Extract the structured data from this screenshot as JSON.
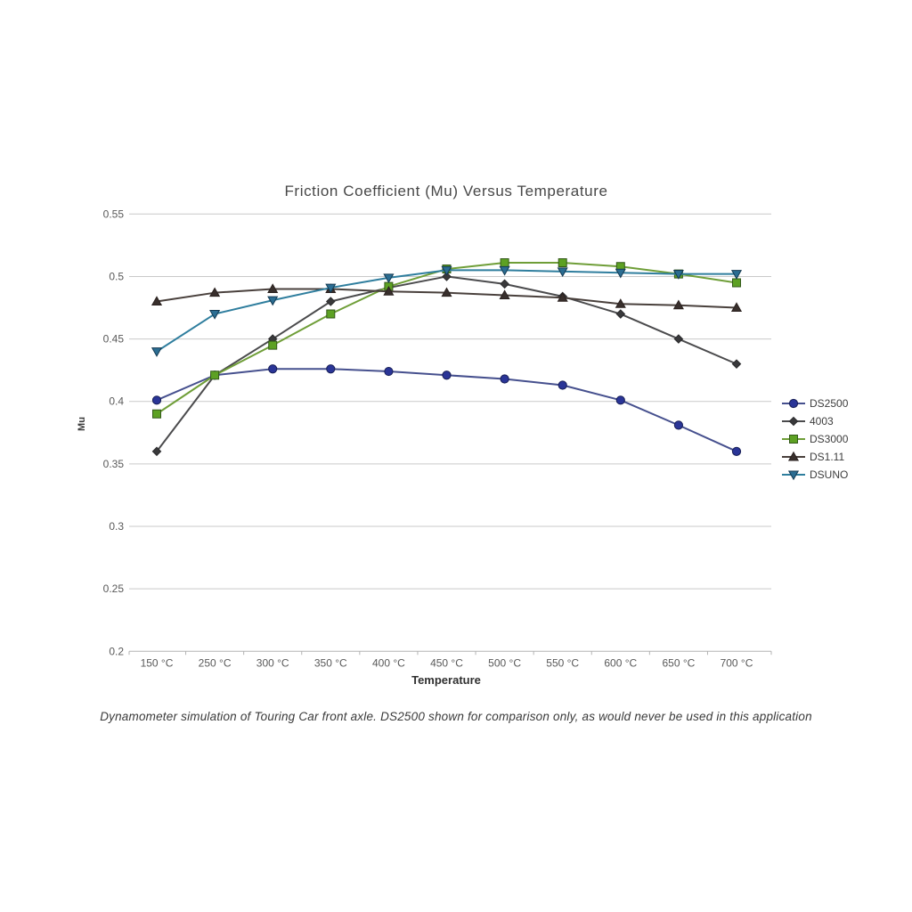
{
  "chart_data": {
    "type": "line",
    "title": "Friction Coefficient (Mu) Versus Temperature",
    "xlabel": "Temperature",
    "ylabel": "Mu",
    "categories": [
      "150 °C",
      "250 °C",
      "300 °C",
      "350 °C",
      "400 °C",
      "450 °C",
      "500 °C",
      "550 °C",
      "600 °C",
      "650 °C",
      "700 °C"
    ],
    "y_ticks": [
      "0.55",
      "0.5",
      "0.45",
      "0.4",
      "0.35",
      "0.3",
      "0.25",
      "0.2"
    ],
    "ylim": [
      0.2,
      0.55
    ],
    "grid": "horizontal",
    "legend_position": "right",
    "series": [
      {
        "name": "DS2500",
        "marker": "circle",
        "line_color": "#46508e",
        "marker_color": "#2a3597",
        "edge_color": "#171e56",
        "values": [
          0.401,
          0.421,
          0.426,
          0.426,
          0.424,
          0.421,
          0.418,
          0.413,
          0.401,
          0.381,
          0.36
        ]
      },
      {
        "name": "4003",
        "marker": "diamond",
        "line_color": "#4b4b4d",
        "marker_color": "#39393b",
        "edge_color": "#2a2a2c",
        "values": [
          0.36,
          0.421,
          0.45,
          0.48,
          0.491,
          0.5,
          0.494,
          0.484,
          0.47,
          0.45,
          0.43
        ]
      },
      {
        "name": "DS3000",
        "marker": "square",
        "line_color": "#6f9e38",
        "marker_color": "#5da123",
        "edge_color": "#33591a",
        "values": [
          0.39,
          0.421,
          0.445,
          0.47,
          0.492,
          0.506,
          0.511,
          0.511,
          0.508,
          0.502,
          0.495
        ]
      },
      {
        "name": "DS1.11",
        "marker": "triangle-up",
        "line_color": "#49403c",
        "marker_color": "#382f2c",
        "edge_color": "#2a211f",
        "values": [
          0.48,
          0.487,
          0.49,
          0.49,
          0.488,
          0.487,
          0.485,
          0.483,
          0.478,
          0.477,
          0.475
        ]
      },
      {
        "name": "DSUNO",
        "marker": "triangle-down",
        "line_color": "#2f7e9e",
        "marker_color": "#2b6d92",
        "edge_color": "#143a52",
        "values": [
          0.44,
          0.47,
          0.481,
          0.491,
          0.499,
          0.505,
          0.505,
          0.504,
          0.503,
          0.502,
          0.502
        ]
      }
    ],
    "colors": {
      "gridline": "#c9c9c9",
      "axis_line": "#b3b3b3",
      "tick_label": "#595959"
    }
  },
  "caption": "Dynamometer simulation of Touring Car front axle. DS2500 shown for comparison only, as would never be used in this application"
}
